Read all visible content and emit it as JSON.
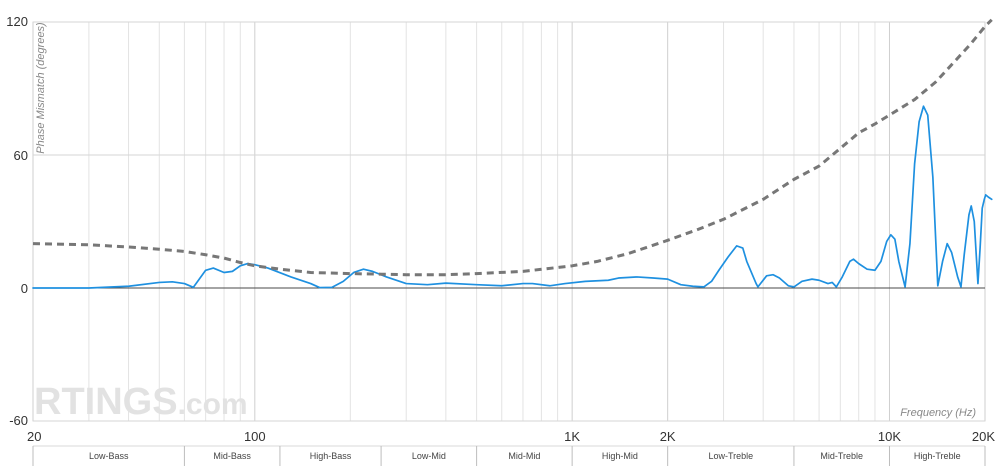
{
  "watermark": {
    "brand": "RTINGS",
    "suffix": ".com"
  },
  "chart_data": {
    "type": "line",
    "ylabel": "Phase Mismatch (degrees)",
    "xlabel": "Frequency (Hz)",
    "x_scale": "log",
    "xlim": [
      20,
      20000
    ],
    "ylim": [
      -60,
      120
    ],
    "grid": true,
    "x_ticks": [
      {
        "value": 20,
        "label": "20"
      },
      {
        "value": 100,
        "label": "100"
      },
      {
        "value": 1000,
        "label": "1K"
      },
      {
        "value": 2000,
        "label": "2K"
      },
      {
        "value": 10000,
        "label": "10K"
      },
      {
        "value": 20000,
        "label": "20K"
      }
    ],
    "y_ticks": [
      {
        "value": 120,
        "label": "120"
      },
      {
        "value": 60,
        "label": "60"
      },
      {
        "value": 0,
        "label": "0"
      },
      {
        "value": -60,
        "label": "-60"
      }
    ],
    "minor_gridlines_x": [
      30,
      40,
      50,
      60,
      70,
      80,
      90,
      200,
      300,
      400,
      500,
      600,
      700,
      800,
      900,
      3000,
      4000,
      5000,
      6000,
      7000,
      8000,
      9000
    ],
    "bands": [
      {
        "label": "Low-Bass",
        "from": 20,
        "to": 60
      },
      {
        "label": "Mid-Bass",
        "from": 60,
        "to": 120
      },
      {
        "label": "High-Bass",
        "from": 120,
        "to": 250
      },
      {
        "label": "Low-Mid",
        "from": 250,
        "to": 500
      },
      {
        "label": "Mid-Mid",
        "from": 500,
        "to": 1000
      },
      {
        "label": "High-Mid",
        "from": 1000,
        "to": 2000
      },
      {
        "label": "Low-Treble",
        "from": 2000,
        "to": 5000
      },
      {
        "label": "Mid-Treble",
        "from": 5000,
        "to": 10000
      },
      {
        "label": "High-Treble",
        "from": 10000,
        "to": 20000
      }
    ],
    "series": [
      {
        "style": "solid",
        "color": "#1e90e0",
        "points": [
          [
            20,
            0
          ],
          [
            30,
            0
          ],
          [
            40,
            0.8
          ],
          [
            50,
            2.5
          ],
          [
            55,
            2.8
          ],
          [
            60,
            2
          ],
          [
            64,
            0.3
          ],
          [
            70,
            8
          ],
          [
            74,
            9
          ],
          [
            80,
            7
          ],
          [
            85,
            7.5
          ],
          [
            90,
            10
          ],
          [
            95,
            11
          ],
          [
            100,
            10.5
          ],
          [
            110,
            9
          ],
          [
            130,
            5
          ],
          [
            150,
            2
          ],
          [
            160,
            0.2
          ],
          [
            175,
            0.3
          ],
          [
            190,
            3
          ],
          [
            205,
            7
          ],
          [
            220,
            8.5
          ],
          [
            235,
            7.5
          ],
          [
            260,
            5
          ],
          [
            300,
            2
          ],
          [
            350,
            1.5
          ],
          [
            400,
            2.2
          ],
          [
            500,
            1.5
          ],
          [
            600,
            1
          ],
          [
            700,
            2
          ],
          [
            750,
            2
          ],
          [
            850,
            1
          ],
          [
            950,
            2
          ],
          [
            1100,
            3
          ],
          [
            1300,
            3.5
          ],
          [
            1400,
            4.5
          ],
          [
            1600,
            5
          ],
          [
            1800,
            4.5
          ],
          [
            2000,
            4
          ],
          [
            2200,
            1.5
          ],
          [
            2400,
            0.8
          ],
          [
            2600,
            0.5
          ],
          [
            2750,
            3
          ],
          [
            2900,
            8
          ],
          [
            3100,
            14
          ],
          [
            3300,
            19
          ],
          [
            3450,
            18
          ],
          [
            3550,
            12
          ],
          [
            3800,
            2
          ],
          [
            3850,
            0.5
          ],
          [
            4100,
            5.5
          ],
          [
            4300,
            6
          ],
          [
            4500,
            4.5
          ],
          [
            4800,
            1
          ],
          [
            5000,
            0.5
          ],
          [
            5300,
            3
          ],
          [
            5700,
            4
          ],
          [
            6000,
            3.5
          ],
          [
            6400,
            2
          ],
          [
            6600,
            2.5
          ],
          [
            6800,
            0.5
          ],
          [
            7100,
            5
          ],
          [
            7500,
            12
          ],
          [
            7700,
            13
          ],
          [
            8000,
            11
          ],
          [
            8500,
            8.5
          ],
          [
            9000,
            8
          ],
          [
            9400,
            12
          ],
          [
            9800,
            21
          ],
          [
            10100,
            24
          ],
          [
            10400,
            22
          ],
          [
            10700,
            12
          ],
          [
            11200,
            0.5
          ],
          [
            11600,
            20
          ],
          [
            12000,
            56
          ],
          [
            12400,
            75
          ],
          [
            12800,
            82
          ],
          [
            13200,
            78
          ],
          [
            13700,
            50
          ],
          [
            14200,
            1
          ],
          [
            14700,
            12
          ],
          [
            15200,
            20
          ],
          [
            15700,
            16
          ],
          [
            16400,
            5
          ],
          [
            16800,
            0.5
          ],
          [
            17200,
            15
          ],
          [
            17800,
            33
          ],
          [
            18100,
            37
          ],
          [
            18500,
            30
          ],
          [
            19000,
            2
          ],
          [
            19300,
            18
          ],
          [
            19600,
            36
          ],
          [
            19900,
            40
          ],
          [
            20100,
            42
          ],
          [
            20500,
            41
          ],
          [
            21000,
            40
          ]
        ]
      },
      {
        "style": "dashed",
        "color": "#777777",
        "points": [
          [
            20,
            20
          ],
          [
            30,
            19.5
          ],
          [
            40,
            18.5
          ],
          [
            50,
            17.5
          ],
          [
            60,
            16.5
          ],
          [
            70,
            15
          ],
          [
            80,
            13.5
          ],
          [
            90,
            11.5
          ],
          [
            100,
            10
          ],
          [
            120,
            8.5
          ],
          [
            150,
            7
          ],
          [
            200,
            6.5
          ],
          [
            300,
            6
          ],
          [
            400,
            6
          ],
          [
            500,
            6.5
          ],
          [
            700,
            7.5
          ],
          [
            1000,
            10
          ],
          [
            1200,
            12
          ],
          [
            1500,
            15.5
          ],
          [
            2000,
            21.5
          ],
          [
            2500,
            26.5
          ],
          [
            3000,
            31
          ],
          [
            4000,
            40
          ],
          [
            5000,
            49
          ],
          [
            6000,
            55
          ],
          [
            7000,
            63
          ],
          [
            8000,
            70
          ],
          [
            9000,
            74
          ],
          [
            10000,
            78
          ],
          [
            12000,
            85
          ],
          [
            14000,
            93
          ],
          [
            16000,
            102
          ],
          [
            18000,
            110
          ],
          [
            20000,
            118
          ],
          [
            21000,
            121
          ]
        ]
      }
    ]
  }
}
